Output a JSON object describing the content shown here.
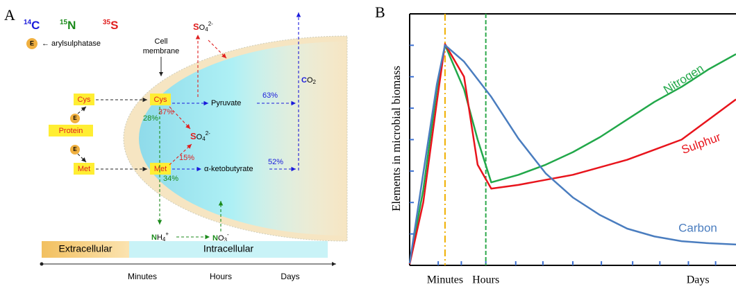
{
  "panel_a": {
    "label": "A",
    "isotopes": [
      {
        "mass": "14",
        "symbol": "C"
      },
      {
        "mass": "15",
        "symbol": "N"
      },
      {
        "mass": "35",
        "symbol": "S"
      }
    ],
    "enzyme": "E",
    "enzyme_name": "← arylsulphatase",
    "membrane": [
      "Cell",
      "membrane"
    ],
    "protein": "Protein",
    "cys": "Cys",
    "met": "Met",
    "sulfate": {
      "element": "S",
      "rest": "O",
      "sub": "4",
      "charge": "2-"
    },
    "pyruvate": "Pyruvate",
    "ketobutyrate": "α-ketobutyrate",
    "co2": {
      "element": "C",
      "rest": "O",
      "sub": "2"
    },
    "ammonium": {
      "element": "N",
      "rest": "H",
      "sub": "4",
      "charge": "+"
    },
    "nitrate": {
      "element": "N",
      "rest": "O",
      "sub": "3",
      "charge": "-"
    },
    "percentages": [
      "63%",
      "52%",
      "37%",
      "15%",
      "28%",
      "34%"
    ],
    "timeline": {
      "phases": [
        "Extracellular",
        "Intracellular"
      ],
      "times": [
        "Minutes",
        "Hours",
        "Days"
      ]
    }
  },
  "chart_data": {
    "type": "line",
    "label": "B",
    "y_label": "Elements in microbial biomass",
    "xlim": [
      0,
      12
    ],
    "ylim": [
      0,
      100
    ],
    "xticks": [
      {
        "value": 1.3,
        "label": "Minutes"
      },
      {
        "value": 2.8,
        "label": "Hours"
      },
      {
        "value": 10.6,
        "label": "Days"
      }
    ],
    "xminor": [
      1.05,
      1.9,
      2.8,
      3.9,
      4.9,
      6,
      7.05,
      8.2,
      9.2,
      10.25,
      11.25
    ],
    "yminor": [
      12.5,
      25,
      37.5,
      50,
      62.5,
      75,
      87.5
    ],
    "reference_lines": [
      {
        "x": 1.3,
        "color": "#f0b000",
        "style": "dashdot"
      },
      {
        "x": 2.8,
        "color": "#2ca84a",
        "style": "dashed"
      }
    ],
    "x": [
      0,
      0.5,
      1,
      1.3,
      2,
      2.5,
      3,
      4,
      5,
      6,
      7,
      8,
      9,
      10,
      11,
      12
    ],
    "series": [
      {
        "name": "Nitrogen",
        "color": "#22a84a",
        "values": [
          0.8,
          30,
          70,
          87.6,
          70,
          50,
          33,
          36,
          40,
          45,
          51,
          58,
          65,
          71,
          78,
          84
        ]
      },
      {
        "name": "Sulphur",
        "color": "#e8141c",
        "values": [
          0.5,
          25,
          65,
          88,
          75,
          40,
          30.5,
          32,
          34,
          36,
          39,
          42,
          46,
          50,
          58,
          66
        ]
      },
      {
        "name": "Carbon",
        "color": "#4a7dbf",
        "values": [
          0.8,
          36.6,
          72,
          87.6,
          81,
          74,
          67,
          50.4,
          36.6,
          27,
          20,
          14.6,
          11.5,
          9.6,
          8.8,
          8.3
        ]
      }
    ]
  }
}
